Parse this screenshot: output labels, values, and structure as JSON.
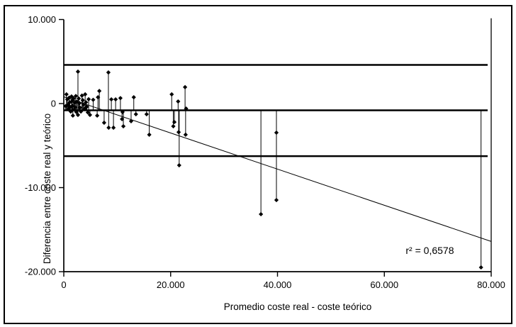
{
  "chart_data": {
    "type": "scatter",
    "title": "",
    "xlabel": "Promedio coste real - coste teórico",
    "ylabel": "Diferencia entre coste real y teórico",
    "xlim": [
      0,
      80000
    ],
    "ylim": [
      -20000,
      10000
    ],
    "grid": false,
    "legend": false,
    "marker": "diamond",
    "colors": {
      "foreground": "#000000",
      "background": "#ffffff"
    },
    "x_ticks": [
      {
        "value": 0,
        "label": "0"
      },
      {
        "value": 20000,
        "label": "20.000"
      },
      {
        "value": 40000,
        "label": "40.000"
      },
      {
        "value": 60000,
        "label": "60.000"
      },
      {
        "value": 80000,
        "label": "80.000"
      }
    ],
    "y_ticks": [
      {
        "value": 10000,
        "label": "10.000"
      },
      {
        "value": 0,
        "label": "0"
      },
      {
        "value": -10000,
        "label": "-10.000"
      },
      {
        "value": -20000,
        "label": "-20.000"
      }
    ],
    "reference_lines": [
      {
        "name": "upper-limit-line",
        "y": 4600
      },
      {
        "name": "mean-difference-line",
        "y": -800
      },
      {
        "name": "lower-limit-line",
        "y": -6250
      }
    ],
    "drop_lines": {
      "to_y": -800
    },
    "edge_line": {
      "x": 80000,
      "from_y": 10150,
      "to_y": -20000
    },
    "trend_line": {
      "x1": 0,
      "y1": 800,
      "x2": 80000,
      "y2": -16400
    },
    "annotation": {
      "text": "r² = 0,6578",
      "x": 64000,
      "y": -17900
    },
    "points": [
      [
        350,
        -300
      ],
      [
        500,
        1100
      ],
      [
        650,
        500
      ],
      [
        800,
        -150
      ],
      [
        900,
        -650
      ],
      [
        1000,
        700
      ],
      [
        1100,
        150
      ],
      [
        1200,
        -400
      ],
      [
        1300,
        -950
      ],
      [
        1450,
        850
      ],
      [
        1550,
        300
      ],
      [
        1650,
        -250
      ],
      [
        1700,
        -1430
      ],
      [
        1850,
        600
      ],
      [
        1950,
        -700
      ],
      [
        2050,
        100
      ],
      [
        2150,
        -450
      ],
      [
        2250,
        900
      ],
      [
        2350,
        -1000
      ],
      [
        2450,
        200
      ],
      [
        2650,
        3800
      ],
      [
        2650,
        -1350
      ],
      [
        2800,
        600
      ],
      [
        2950,
        50
      ],
      [
        3050,
        -480
      ],
      [
        3200,
        -950
      ],
      [
        3400,
        950
      ],
      [
        3550,
        400
      ],
      [
        3700,
        -120
      ],
      [
        3900,
        -620
      ],
      [
        4000,
        1100
      ],
      [
        4150,
        150
      ],
      [
        4300,
        -380
      ],
      [
        4500,
        -1050
      ],
      [
        4650,
        520
      ],
      [
        4900,
        -1350
      ],
      [
        5500,
        450
      ],
      [
        6250,
        -1430
      ],
      [
        6400,
        750
      ],
      [
        6650,
        1500
      ],
      [
        7550,
        -2280
      ],
      [
        8350,
        3700
      ],
      [
        8400,
        -2870
      ],
      [
        8900,
        500
      ],
      [
        9300,
        -2870
      ],
      [
        9700,
        500
      ],
      [
        10600,
        650
      ],
      [
        10900,
        -1850
      ],
      [
        11000,
        -1000
      ],
      [
        11150,
        -2700
      ],
      [
        12600,
        -2100
      ],
      [
        13100,
        750
      ],
      [
        13500,
        -1270
      ],
      [
        15500,
        -1270
      ],
      [
        16000,
        -3700
      ],
      [
        20200,
        1100
      ],
      [
        20500,
        -2700
      ],
      [
        20700,
        -2200
      ],
      [
        21400,
        250
      ],
      [
        21500,
        -3400
      ],
      [
        21600,
        -7340
      ],
      [
        22700,
        1950
      ],
      [
        22800,
        -3700
      ],
      [
        22900,
        -600
      ],
      [
        36900,
        -13160
      ],
      [
        39800,
        -3460
      ],
      [
        39800,
        -11480
      ],
      [
        78100,
        -19490
      ]
    ]
  }
}
